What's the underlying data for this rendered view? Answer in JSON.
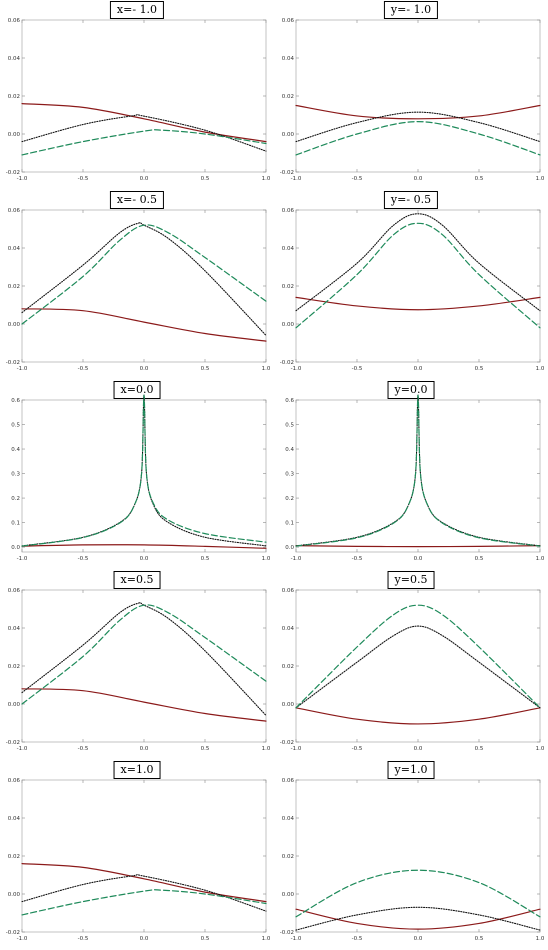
{
  "colors": {
    "solid": "#8b1a1a",
    "dashed": "#1e8a5a",
    "dotted": "#111111"
  },
  "chart_data": [
    {
      "type": "line",
      "title": "x=- 1.0",
      "xlim": [
        -1,
        1
      ],
      "ylim": [
        -0.02,
        0.06
      ],
      "xticks": [
        "-1.0",
        "-0.5",
        "0.0",
        "0.5",
        "1.0"
      ],
      "yticks": [
        "-0.02",
        "0.00",
        "0.02",
        "0.04",
        "0.06"
      ],
      "series": [
        {
          "style": "solid",
          "x": [
            -1,
            -0.5,
            0,
            0.5,
            1
          ],
          "y": [
            0.016,
            0.014,
            0.008,
            0.001,
            -0.004
          ]
        },
        {
          "style": "dotted",
          "x": [
            -1,
            -0.5,
            -0.1,
            0,
            0.5,
            1
          ],
          "y": [
            -0.004,
            0.005,
            0.0095,
            0.0094,
            0.002,
            -0.009
          ]
        },
        {
          "style": "dashed",
          "x": [
            -1,
            -0.5,
            0,
            0.15,
            0.5,
            1
          ],
          "y": [
            -0.011,
            -0.004,
            0.0015,
            0.002,
            0.0,
            -0.005
          ]
        }
      ]
    },
    {
      "type": "line",
      "title": "y=- 1.0",
      "xlim": [
        -1,
        1
      ],
      "ylim": [
        -0.02,
        0.06
      ],
      "xticks": [
        "-1.0",
        "-0.5",
        "0.0",
        "0.5",
        "1.0"
      ],
      "yticks": [
        "-0.02",
        "0.00",
        "0.02",
        "0.04",
        "0.06"
      ],
      "series": [
        {
          "style": "solid",
          "x": [
            -1,
            -0.5,
            0,
            0.5,
            1
          ],
          "y": [
            0.015,
            0.0095,
            0.008,
            0.0095,
            0.015
          ]
        },
        {
          "style": "dotted",
          "x": [
            -1,
            -0.5,
            0,
            0.5,
            1
          ],
          "y": [
            -0.004,
            0.006,
            0.0115,
            0.006,
            -0.004
          ]
        },
        {
          "style": "dashed",
          "x": [
            -1,
            -0.5,
            0,
            0.5,
            1
          ],
          "y": [
            -0.011,
            0.0,
            0.0065,
            0.0,
            -0.011
          ]
        }
      ]
    },
    {
      "type": "line",
      "title": "x=- 0.5",
      "xlim": [
        -1,
        1
      ],
      "ylim": [
        -0.02,
        0.06
      ],
      "xticks": [
        "-1.0",
        "-0.5",
        "0.0",
        "0.5",
        "1.0"
      ],
      "yticks": [
        "-0.02",
        "0.00",
        "0.02",
        "0.04",
        "0.06"
      ],
      "series": [
        {
          "style": "solid",
          "x": [
            -1,
            -0.5,
            0,
            0.5,
            1
          ],
          "y": [
            0.008,
            0.007,
            0.001,
            -0.005,
            -0.009
          ]
        },
        {
          "style": "dotted",
          "x": [
            -1,
            -0.5,
            -0.2,
            -0.05,
            0,
            0.2,
            0.5,
            1
          ],
          "y": [
            0.006,
            0.031,
            0.048,
            0.053,
            0.052,
            0.045,
            0.028,
            -0.006
          ]
        },
        {
          "style": "dashed",
          "x": [
            -1,
            -0.5,
            -0.2,
            0,
            0.2,
            0.5,
            1
          ],
          "y": [
            0.0,
            0.025,
            0.044,
            0.052,
            0.048,
            0.035,
            0.012
          ]
        }
      ]
    },
    {
      "type": "line",
      "title": "y=- 0.5",
      "xlim": [
        -1,
        1
      ],
      "ylim": [
        -0.02,
        0.06
      ],
      "xticks": [
        "-1.0",
        "-0.5",
        "0.0",
        "0.5",
        "1.0"
      ],
      "yticks": [
        "-0.02",
        "0.00",
        "0.02",
        "0.04",
        "0.06"
      ],
      "series": [
        {
          "style": "solid",
          "x": [
            -1,
            -0.5,
            0,
            0.5,
            1
          ],
          "y": [
            0.014,
            0.0095,
            0.0075,
            0.0095,
            0.014
          ]
        },
        {
          "style": "dotted",
          "x": [
            -1,
            -0.5,
            -0.2,
            0,
            0.2,
            0.5,
            1
          ],
          "y": [
            0.007,
            0.032,
            0.052,
            0.058,
            0.052,
            0.032,
            0.007
          ]
        },
        {
          "style": "dashed",
          "x": [
            -1,
            -0.5,
            -0.2,
            0,
            0.2,
            0.5,
            1
          ],
          "y": [
            -0.002,
            0.026,
            0.047,
            0.053,
            0.047,
            0.026,
            -0.002
          ]
        }
      ]
    },
    {
      "type": "line",
      "title": "x=0.0",
      "xlim": [
        -1,
        1
      ],
      "ylim": [
        -0.02,
        0.6
      ],
      "xticks": [
        "-1.0",
        "-0.5",
        "0.0",
        "0.5",
        "1.0"
      ],
      "yticks": [
        "0.0",
        "0.1",
        "0.2",
        "0.3",
        "0.4",
        "0.5",
        "0.6"
      ],
      "series": [
        {
          "style": "solid",
          "x": [
            -1,
            -0.5,
            0,
            0.5,
            1
          ],
          "y": [
            0.004,
            0.009,
            0.009,
            0.003,
            -0.005
          ]
        },
        {
          "style": "dotted",
          "x": [
            -1,
            -0.5,
            -0.2,
            -0.08,
            -0.02,
            0,
            0.02,
            0.08,
            0.2,
            0.5,
            1
          ],
          "y": [
            0.005,
            0.04,
            0.1,
            0.17,
            0.3,
            0.62,
            0.3,
            0.17,
            0.1,
            0.04,
            0.005
          ]
        },
        {
          "style": "dashed",
          "x": [
            -1,
            -0.5,
            -0.2,
            -0.08,
            -0.02,
            0,
            0.02,
            0.08,
            0.2,
            0.5,
            1
          ],
          "y": [
            0.004,
            0.039,
            0.098,
            0.17,
            0.3,
            0.62,
            0.3,
            0.175,
            0.11,
            0.055,
            0.02
          ]
        }
      ]
    },
    {
      "type": "line",
      "title": "y=0.0",
      "xlim": [
        -1,
        1
      ],
      "ylim": [
        -0.02,
        0.6
      ],
      "xticks": [
        "-1.0",
        "-0.5",
        "0.0",
        "0.5",
        "1.0"
      ],
      "yticks": [
        "0.0",
        "0.1",
        "0.2",
        "0.3",
        "0.4",
        "0.5",
        "0.6"
      ],
      "series": [
        {
          "style": "solid",
          "x": [
            -1,
            -0.5,
            0,
            0.5,
            1
          ],
          "y": [
            0.006,
            0.003,
            0.002,
            0.003,
            0.006
          ]
        },
        {
          "style": "dotted",
          "x": [
            -1,
            -0.5,
            -0.2,
            -0.08,
            -0.02,
            0,
            0.02,
            0.08,
            0.2,
            0.5,
            1
          ],
          "y": [
            0.005,
            0.04,
            0.1,
            0.17,
            0.3,
            0.62,
            0.3,
            0.17,
            0.1,
            0.04,
            0.005
          ]
        },
        {
          "style": "dashed",
          "x": [
            -1,
            -0.5,
            -0.2,
            -0.08,
            -0.02,
            0,
            0.02,
            0.08,
            0.2,
            0.5,
            1
          ],
          "y": [
            0.004,
            0.038,
            0.098,
            0.17,
            0.3,
            0.62,
            0.3,
            0.17,
            0.098,
            0.038,
            0.004
          ]
        }
      ]
    },
    {
      "type": "line",
      "title": "x=0.5",
      "xlim": [
        -1,
        1
      ],
      "ylim": [
        -0.02,
        0.06
      ],
      "xticks": [
        "-1.0",
        "-0.5",
        "0.0",
        "0.5",
        "1.0"
      ],
      "yticks": [
        "-0.02",
        "0.00",
        "0.02",
        "0.04",
        "0.06"
      ],
      "series": [
        {
          "style": "solid",
          "x": [
            -1,
            -0.5,
            0,
            0.5,
            1
          ],
          "y": [
            0.008,
            0.007,
            0.001,
            -0.005,
            -0.009
          ]
        },
        {
          "style": "dotted",
          "x": [
            -1,
            -0.5,
            -0.2,
            -0.05,
            0,
            0.2,
            0.5,
            1
          ],
          "y": [
            0.006,
            0.031,
            0.048,
            0.053,
            0.052,
            0.045,
            0.028,
            -0.006
          ]
        },
        {
          "style": "dashed",
          "x": [
            -1,
            -0.5,
            -0.2,
            0,
            0.2,
            0.5,
            1
          ],
          "y": [
            0.0,
            0.025,
            0.044,
            0.052,
            0.048,
            0.035,
            0.012
          ]
        }
      ]
    },
    {
      "type": "line",
      "title": "y=0.5",
      "xlim": [
        -1,
        1
      ],
      "ylim": [
        -0.02,
        0.06
      ],
      "xticks": [
        "-1.0",
        "-0.5",
        "0.0",
        "0.5",
        "1.0"
      ],
      "yticks": [
        "-0.02",
        "0.00",
        "0.02",
        "0.04",
        "0.06"
      ],
      "series": [
        {
          "style": "solid",
          "x": [
            -1,
            -0.5,
            0,
            0.5,
            1
          ],
          "y": [
            -0.002,
            -0.008,
            -0.0105,
            -0.008,
            -0.002
          ]
        },
        {
          "style": "dotted",
          "x": [
            -1,
            -0.5,
            -0.2,
            0,
            0.2,
            0.5,
            1
          ],
          "y": [
            -0.002,
            0.022,
            0.036,
            0.041,
            0.036,
            0.022,
            -0.002
          ]
        },
        {
          "style": "dashed",
          "x": [
            -1,
            -0.5,
            -0.2,
            0,
            0.2,
            0.5,
            1
          ],
          "y": [
            -0.002,
            0.03,
            0.047,
            0.052,
            0.047,
            0.03,
            -0.002
          ]
        }
      ]
    },
    {
      "type": "line",
      "title": "x=1.0",
      "xlim": [
        -1,
        1
      ],
      "ylim": [
        -0.02,
        0.06
      ],
      "xticks": [
        "-1.0",
        "-0.5",
        "0.0",
        "0.5",
        "1.0"
      ],
      "yticks": [
        "-0.02",
        "0.00",
        "0.02",
        "0.04",
        "0.06"
      ],
      "series": [
        {
          "style": "solid",
          "x": [
            -1,
            -0.5,
            0,
            0.5,
            1
          ],
          "y": [
            0.016,
            0.014,
            0.008,
            0.001,
            -0.004
          ]
        },
        {
          "style": "dotted",
          "x": [
            -1,
            -0.5,
            -0.1,
            0,
            0.5,
            1
          ],
          "y": [
            -0.004,
            0.005,
            0.0095,
            0.0094,
            0.002,
            -0.009
          ]
        },
        {
          "style": "dashed",
          "x": [
            -1,
            -0.5,
            0,
            0.15,
            0.5,
            1
          ],
          "y": [
            -0.011,
            -0.004,
            0.0015,
            0.002,
            0.0,
            -0.005
          ]
        }
      ]
    },
    {
      "type": "line",
      "title": "y=1.0",
      "xlim": [
        -1,
        1
      ],
      "ylim": [
        -0.02,
        0.06
      ],
      "xticks": [
        "-1.0",
        "-0.5",
        "0.0",
        "0.5",
        "1.0"
      ],
      "yticks": [
        "-0.02",
        "0.00",
        "0.02",
        "0.04",
        "0.06"
      ],
      "series": [
        {
          "style": "solid",
          "x": [
            -1,
            -0.5,
            0,
            0.5,
            1
          ],
          "y": [
            -0.008,
            -0.0155,
            -0.0185,
            -0.0155,
            -0.008
          ]
        },
        {
          "style": "dotted",
          "x": [
            -1,
            -0.5,
            0,
            0.5,
            1
          ],
          "y": [
            -0.019,
            -0.011,
            -0.007,
            -0.011,
            -0.019
          ]
        },
        {
          "style": "dashed",
          "x": [
            -1,
            -0.5,
            0,
            0.5,
            1
          ],
          "y": [
            -0.012,
            0.006,
            0.0125,
            0.006,
            -0.012
          ]
        }
      ]
    }
  ]
}
